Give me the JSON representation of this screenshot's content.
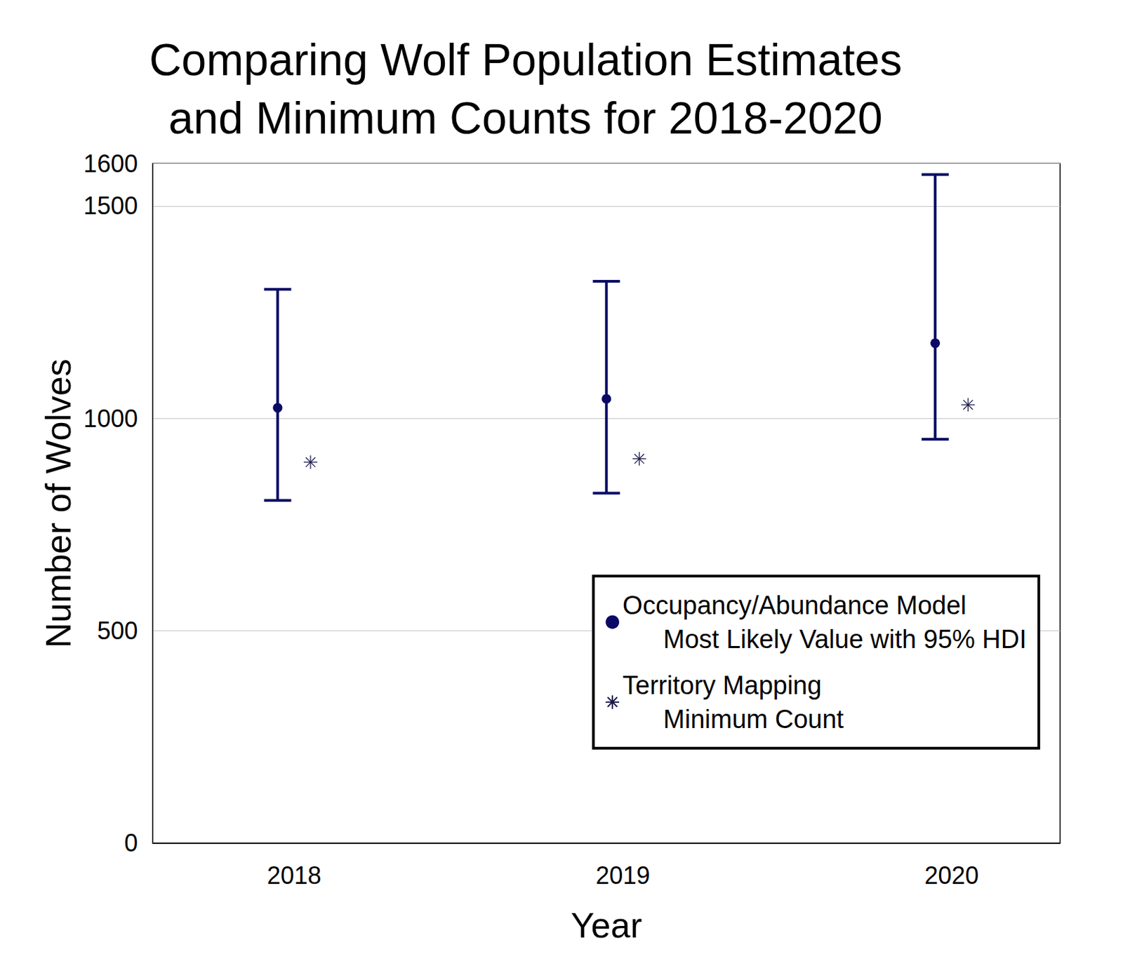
{
  "chart_data": {
    "type": "errorbar",
    "title": "Comparing Wolf Population Estimates\nand Minimum Counts for 2018-2020",
    "x_label": "Year",
    "y_label": "Number of Wolves",
    "xlim": [
      2017.57,
      2020.33
    ],
    "xticks": [
      2018,
      2019,
      2020
    ],
    "ylim": [
      0,
      1600
    ],
    "yticks": [
      0,
      500,
      1000,
      1500
    ],
    "grid": true,
    "legend": "lower right",
    "series": [
      {
        "name": "Occupancy/Abundance Model\nMost Likely Value with 95% HDI",
        "type": "errorbar",
        "marker": "circle",
        "color": "#0b0b66",
        "x": [
          2017.95,
          2018.95,
          2019.95
        ],
        "values": [
          1025,
          1046,
          1177
        ],
        "lower": [
          807,
          824,
          951
        ],
        "upper": [
          1304,
          1323,
          1574
        ]
      },
      {
        "name": "Territory Mapping\nMinimum Count",
        "type": "scatter",
        "marker": "asterisk",
        "color": "#1a1a4a",
        "x": [
          2018.05,
          2019.05,
          2020.05
        ],
        "values": [
          897,
          905,
          1032
        ]
      }
    ]
  }
}
